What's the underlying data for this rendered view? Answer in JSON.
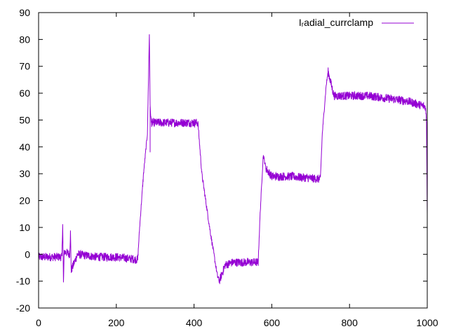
{
  "chart_data": {
    "type": "line",
    "title": "",
    "xlabel": "",
    "ylabel": "",
    "xlim": [
      0,
      1000
    ],
    "ylim": [
      -20,
      90
    ],
    "xticks": [
      0,
      200,
      400,
      600,
      800,
      1000
    ],
    "yticks": [
      -20,
      -10,
      0,
      10,
      20,
      30,
      40,
      50,
      60,
      70,
      80,
      90
    ],
    "xtick_labels": [
      "0",
      "200",
      "400",
      "600",
      "800",
      "1000"
    ],
    "ytick_labels": [
      "-20",
      "-10",
      "0",
      "10",
      "20",
      "30",
      "40",
      "50",
      "60",
      "70",
      "80",
      "90"
    ],
    "grid": false,
    "legend": "top-right",
    "series": [
      {
        "name": "I_radial_currclamp",
        "color": "#9400d3",
        "x": [
          0,
          60,
          62,
          64,
          66,
          80,
          82,
          84,
          100,
          150,
          200,
          255,
          260,
          270,
          280,
          285,
          287,
          290,
          300,
          350,
          410,
          420,
          440,
          460,
          465,
          480,
          500,
          565,
          570,
          578,
          585,
          600,
          650,
          725,
          730,
          740,
          745,
          760,
          800,
          850,
          900,
          950,
          995,
          998,
          1000
        ],
        "y": [
          -1,
          -1,
          12,
          -11,
          1,
          0,
          8,
          -6,
          0,
          -1,
          -1,
          -2,
          10,
          30,
          45,
          82,
          55,
          49,
          49,
          49,
          49,
          30,
          10,
          -8,
          -10,
          -4,
          -3,
          -3,
          15,
          37,
          32,
          29,
          29,
          28,
          45,
          63,
          68,
          59,
          59,
          59,
          58,
          57,
          55,
          50,
          15
        ]
      }
    ]
  },
  "legend": {
    "label": "I_radial_currclamp",
    "display_label": "Iᵣadial_currclamp"
  }
}
